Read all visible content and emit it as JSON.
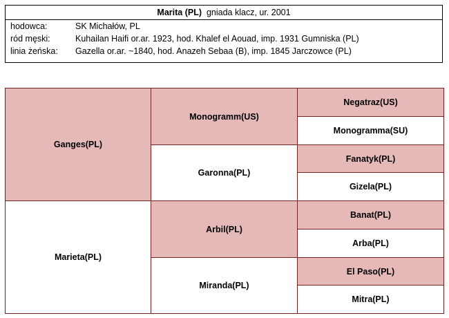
{
  "header": {
    "name": "Marita (PL)",
    "description": "gniada klacz, ur. 2001"
  },
  "info_rows": [
    {
      "label": "hodowca:",
      "value": "SK Michałów, PL"
    },
    {
      "label": "ród męski:",
      "value": "Kuhailan Haifi or.ar. 1923,  hod. Khalef el Aouad, imp. 1931  Gumniska (PL)"
    },
    {
      "label": "linia żeńska:",
      "value": "Gazella or.ar. ~1840,  hod. Anazeh Sebaa (B), imp. 1845  Jarczowce (PL)"
    }
  ],
  "pedigree": {
    "sire": "Ganges(PL)",
    "dam": "Marieta(PL)",
    "grandparents": [
      "Monogramm(US)",
      "Garonna(PL)",
      "Arbil(PL)",
      "Miranda(PL)"
    ],
    "great_grandparents": [
      "Negatraz(US)",
      "Monogramma(SU)",
      "Fanatyk(PL)",
      "Gizela(PL)",
      "Banat(PL)",
      "Arba(PL)",
      "El Paso(PL)",
      "Mitra(PL)"
    ]
  },
  "colors": {
    "male_fill": "#e5b9b8",
    "female_fill": "#ffffff",
    "border": "#7a1f1f"
  }
}
